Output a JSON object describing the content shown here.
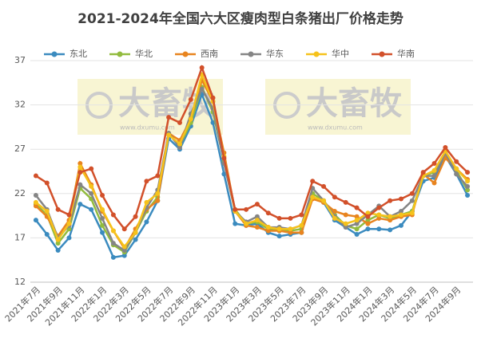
{
  "chart_data": {
    "type": "line",
    "title": "2021-2024年全国六大区瘦肉型白条猪出厂价格走势",
    "watermark": "大畜牧",
    "watermark_url": "www.dxumu.com",
    "categories": [
      "2021年7月",
      null,
      "2021年9月",
      null,
      "2021年11月",
      null,
      "2022年1月",
      null,
      "2022年3月",
      null,
      "2022年5月",
      null,
      "2022年7月",
      null,
      "2022年9月",
      null,
      "2022年11月",
      null,
      "2023年1月",
      null,
      "2023年3月",
      null,
      "2023年5月",
      null,
      "2023年7月",
      null,
      "2023年9月",
      null,
      "2023年11月",
      null,
      "2024年1月",
      null,
      "2024年3月",
      null,
      "2024年5月",
      null,
      "2024年7月",
      null,
      "2024年9月",
      null
    ],
    "ylim": [
      12,
      37
    ],
    "yticks": [
      12,
      17,
      22,
      27,
      32,
      37
    ],
    "grid": true,
    "series": [
      {
        "name": "东北",
        "color": "#3b8bbf",
        "values": [
          19.0,
          17.4,
          15.6,
          17.0,
          20.8,
          20.2,
          17.6,
          14.8,
          15.0,
          16.8,
          18.8,
          21.2,
          28.2,
          27.0,
          29.6,
          33.2,
          30.0,
          24.2,
          18.6,
          18.4,
          18.6,
          17.6,
          17.2,
          17.4,
          17.6,
          21.6,
          21.0,
          19.0,
          18.2,
          17.4,
          18.0,
          18.0,
          17.9,
          18.4,
          20.0,
          23.4,
          23.8,
          26.2,
          24.2,
          21.8
        ]
      },
      {
        "name": "华北",
        "color": "#92bb3e",
        "values": [
          20.8,
          19.6,
          16.4,
          18.0,
          22.6,
          21.4,
          18.4,
          16.2,
          15.4,
          17.6,
          20.0,
          21.6,
          28.8,
          27.4,
          30.0,
          34.0,
          31.2,
          25.6,
          20.2,
          18.6,
          18.8,
          18.0,
          17.8,
          17.8,
          18.0,
          22.0,
          21.2,
          19.6,
          18.4,
          18.0,
          19.0,
          19.6,
          19.2,
          19.6,
          20.0,
          24.0,
          24.4,
          26.4,
          24.6,
          22.4
        ]
      },
      {
        "name": "西南",
        "color": "#e8841f",
        "values": [
          20.6,
          19.4,
          17.2,
          19.0,
          25.4,
          23.0,
          20.0,
          17.8,
          15.8,
          18.0,
          20.2,
          21.2,
          28.8,
          28.0,
          30.4,
          34.8,
          32.4,
          26.6,
          20.0,
          18.4,
          18.2,
          17.8,
          17.8,
          17.6,
          17.6,
          21.4,
          21.0,
          20.0,
          19.6,
          19.4,
          18.6,
          19.2,
          19.0,
          19.4,
          19.6,
          24.2,
          23.2,
          26.0,
          24.8,
          23.6
        ]
      },
      {
        "name": "华东",
        "color": "#858585",
        "values": [
          21.8,
          20.2,
          17.0,
          18.4,
          23.0,
          22.0,
          19.2,
          16.4,
          15.6,
          17.6,
          20.4,
          22.4,
          28.8,
          27.2,
          31.0,
          33.8,
          31.6,
          25.4,
          20.0,
          18.8,
          19.4,
          18.2,
          18.2,
          18.0,
          18.4,
          22.6,
          21.2,
          19.4,
          18.2,
          18.6,
          19.6,
          20.6,
          19.4,
          20.0,
          21.2,
          24.0,
          24.0,
          26.6,
          24.2,
          22.8
        ]
      },
      {
        "name": "华中",
        "color": "#f6c21b",
        "values": [
          21.0,
          20.0,
          16.8,
          18.6,
          25.0,
          22.8,
          20.2,
          17.8,
          16.0,
          17.6,
          21.0,
          22.0,
          28.6,
          27.6,
          30.4,
          35.4,
          32.4,
          26.2,
          20.0,
          18.6,
          19.0,
          18.2,
          18.0,
          18.0,
          18.4,
          21.6,
          21.2,
          19.2,
          18.6,
          19.0,
          19.8,
          19.6,
          19.4,
          19.6,
          19.8,
          24.0,
          24.6,
          26.8,
          24.8,
          23.4
        ]
      },
      {
        "name": "华南",
        "color": "#d2502a",
        "values": [
          24.0,
          23.2,
          20.2,
          19.6,
          24.4,
          24.8,
          21.8,
          19.6,
          18.0,
          19.4,
          23.4,
          24.0,
          30.6,
          30.0,
          32.6,
          36.2,
          32.8,
          26.0,
          20.2,
          20.2,
          20.8,
          19.8,
          19.2,
          19.2,
          19.6,
          23.4,
          22.8,
          21.6,
          21.0,
          20.4,
          19.4,
          20.4,
          21.2,
          21.4,
          22.0,
          24.4,
          25.4,
          27.2,
          25.6,
          24.4
        ]
      }
    ]
  }
}
